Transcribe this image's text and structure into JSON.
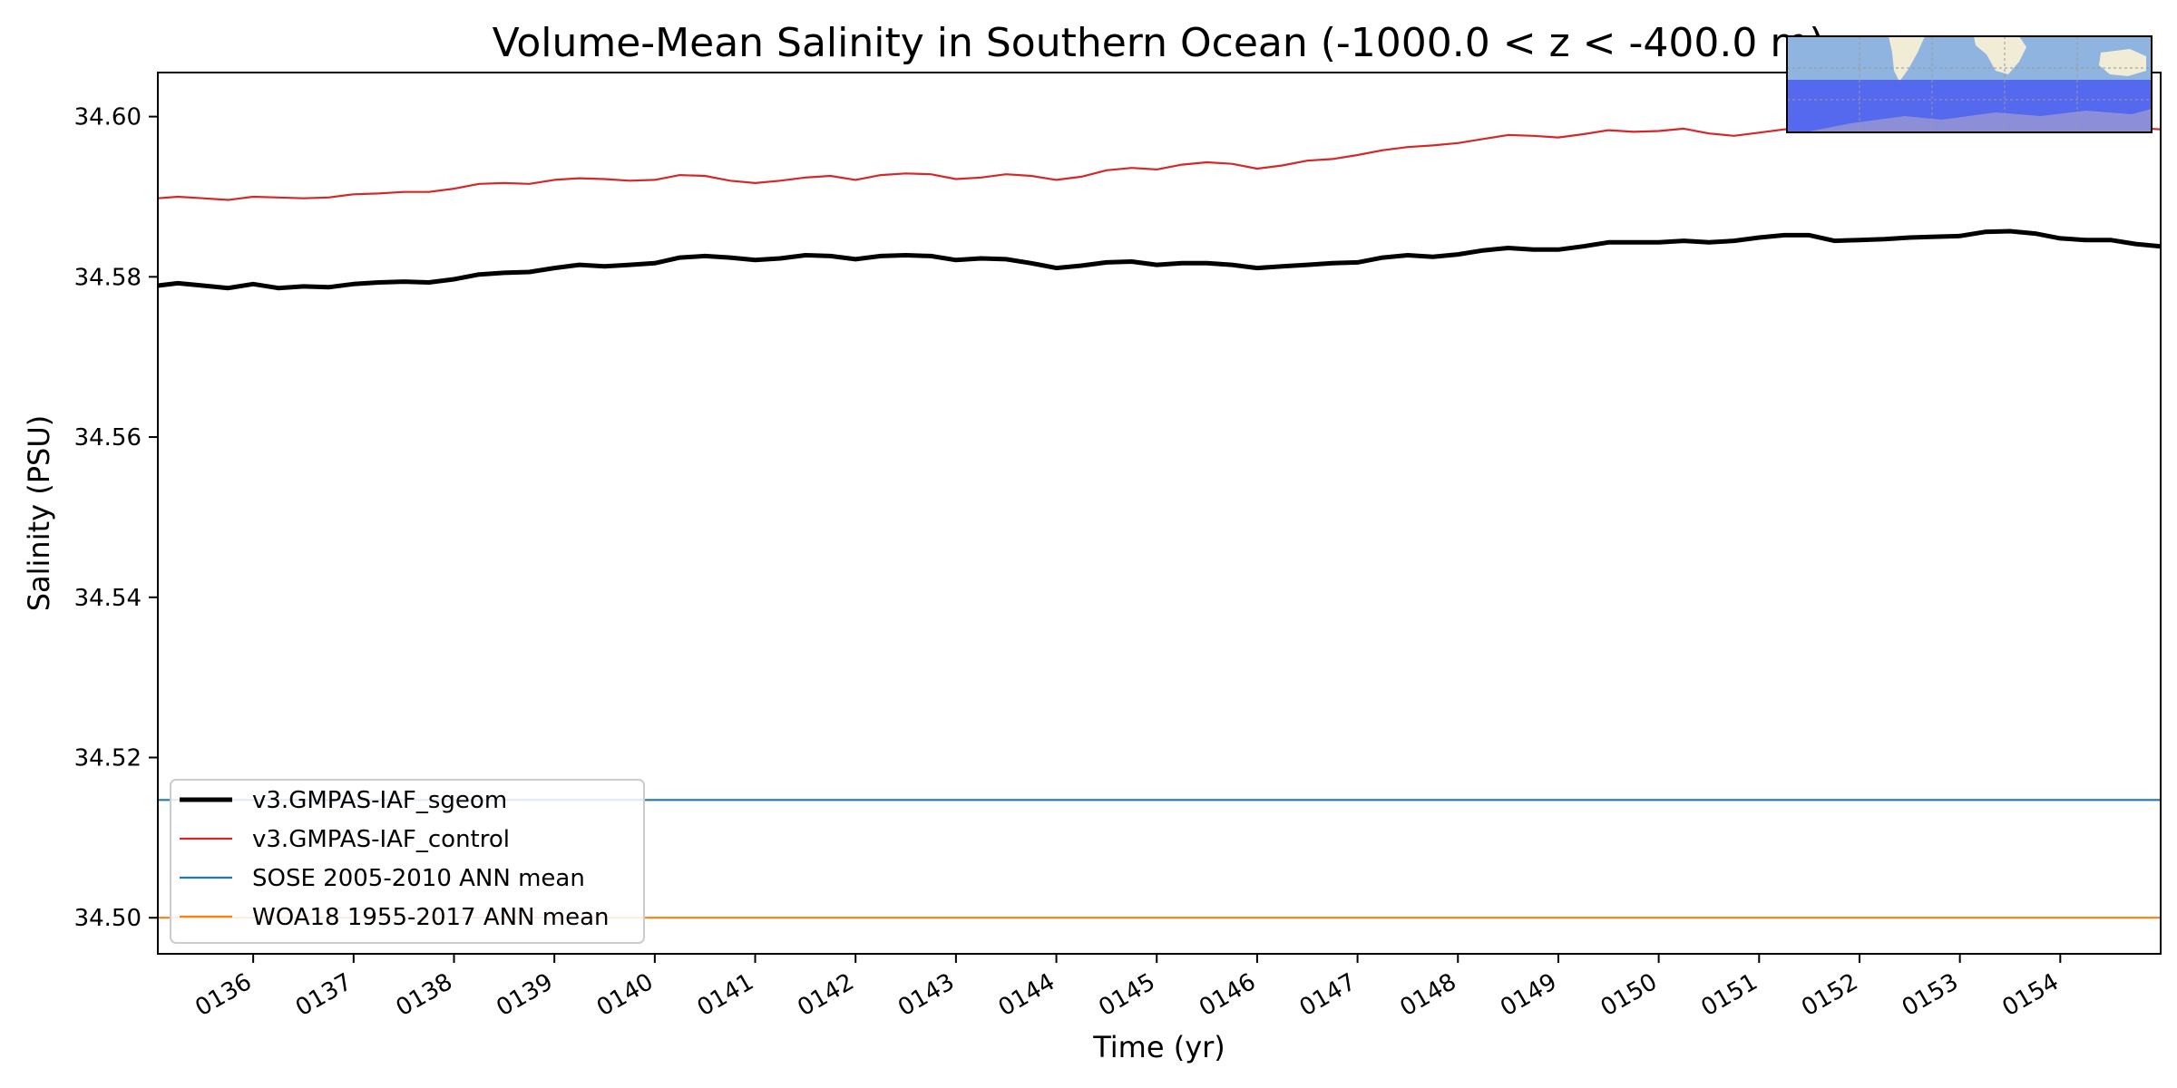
{
  "chart_data": {
    "type": "line",
    "title": "Volume-Mean Salinity in Southern Ocean (-1000.0 < z < -400.0 m)",
    "xlabel": "Time (yr)",
    "ylabel": "Salinity (PSU)",
    "xlim": [
      135.05,
      155.0
    ],
    "ylim": [
      34.4955,
      34.6055
    ],
    "grid": false,
    "legend_position": "lower-left",
    "x_ticks": [
      136,
      137,
      138,
      139,
      140,
      141,
      142,
      143,
      144,
      145,
      146,
      147,
      148,
      149,
      150,
      151,
      152,
      153,
      154
    ],
    "x_tick_labels": [
      "0136",
      "0137",
      "0138",
      "0139",
      "0140",
      "0141",
      "0142",
      "0143",
      "0144",
      "0145",
      "0146",
      "0147",
      "0148",
      "0149",
      "0150",
      "0151",
      "0152",
      "0153",
      "0154"
    ],
    "y_ticks": [
      34.5,
      34.52,
      34.54,
      34.56,
      34.58,
      34.6
    ],
    "y_tick_labels": [
      "34.50",
      "34.52",
      "34.54",
      "34.56",
      "34.58",
      "34.60"
    ],
    "series": [
      {
        "name": "v3.GMPAS-IAF_sgeom",
        "color": "#000000",
        "style": "thick",
        "x": [
          135.05,
          135.25,
          135.5,
          135.75,
          136.0,
          136.25,
          136.5,
          136.75,
          137.0,
          137.25,
          137.5,
          137.75,
          138.0,
          138.25,
          138.5,
          138.75,
          139.0,
          139.25,
          139.5,
          139.75,
          140.0,
          140.25,
          140.5,
          140.75,
          141.0,
          141.25,
          141.5,
          141.75,
          142.0,
          142.25,
          142.5,
          142.75,
          143.0,
          143.25,
          143.5,
          143.75,
          144.0,
          144.25,
          144.5,
          144.75,
          145.0,
          145.25,
          145.5,
          145.75,
          146.0,
          146.25,
          146.5,
          146.75,
          147.0,
          147.25,
          147.5,
          147.75,
          148.0,
          148.25,
          148.5,
          148.75,
          149.0,
          149.25,
          149.5,
          149.75,
          150.0,
          150.25,
          150.5,
          150.75,
          151.0,
          151.25,
          151.5,
          151.75,
          152.0,
          152.25,
          152.5,
          152.75,
          153.0,
          153.25,
          153.5,
          153.75,
          154.0,
          154.25,
          154.5,
          154.75,
          155.0
        ],
        "y": [
          34.5789,
          34.5792,
          34.5789,
          34.5786,
          34.5791,
          34.5786,
          34.5788,
          34.5787,
          34.5791,
          34.5793,
          34.5794,
          34.5793,
          34.5797,
          34.5803,
          34.5805,
          34.5806,
          34.5811,
          34.5815,
          34.5813,
          34.5815,
          34.5817,
          34.5824,
          34.5826,
          34.5824,
          34.5821,
          34.5823,
          34.5827,
          34.5826,
          34.5822,
          34.5826,
          34.5827,
          34.5826,
          34.5821,
          34.5823,
          34.5822,
          34.5817,
          34.5811,
          34.5814,
          34.5818,
          34.5819,
          34.5815,
          34.5817,
          34.5817,
          34.5815,
          34.5811,
          34.5813,
          34.5815,
          34.5817,
          34.5818,
          34.5824,
          34.5827,
          34.5825,
          34.5828,
          34.5833,
          34.5836,
          34.5834,
          34.5834,
          34.5838,
          34.5843,
          34.5843,
          34.5843,
          34.5845,
          34.5843,
          34.5845,
          34.5849,
          34.5852,
          34.5852,
          34.5845,
          34.5846,
          34.5847,
          34.5849,
          34.585,
          34.5851,
          34.5856,
          34.5857,
          34.5854,
          34.5848,
          34.5846,
          34.5846,
          34.5841,
          34.5838
        ]
      },
      {
        "name": "v3.GMPAS-IAF_control",
        "color": "#d62728",
        "style": "thin",
        "x": [
          135.05,
          135.25,
          135.5,
          135.75,
          136.0,
          136.25,
          136.5,
          136.75,
          137.0,
          137.25,
          137.5,
          137.75,
          138.0,
          138.25,
          138.5,
          138.75,
          139.0,
          139.25,
          139.5,
          139.75,
          140.0,
          140.25,
          140.5,
          140.75,
          141.0,
          141.25,
          141.5,
          141.75,
          142.0,
          142.25,
          142.5,
          142.75,
          143.0,
          143.25,
          143.5,
          143.75,
          144.0,
          144.25,
          144.5,
          144.75,
          145.0,
          145.25,
          145.5,
          145.75,
          146.0,
          146.25,
          146.5,
          146.75,
          147.0,
          147.25,
          147.5,
          147.75,
          148.0,
          148.25,
          148.5,
          148.75,
          149.0,
          149.25,
          149.5,
          149.75,
          150.0,
          150.25,
          150.5,
          150.75,
          151.0,
          151.25,
          151.5,
          151.75,
          152.0,
          152.25,
          152.5,
          152.75,
          153.0,
          153.25,
          153.5,
          153.75,
          154.0,
          154.25,
          154.5,
          154.75,
          155.0
        ],
        "y": [
          34.5898,
          34.59,
          34.5898,
          34.5896,
          34.59,
          34.5899,
          34.5898,
          34.5899,
          34.5903,
          34.5904,
          34.5906,
          34.5906,
          34.591,
          34.5916,
          34.5917,
          34.5916,
          34.5921,
          34.5923,
          34.5922,
          34.592,
          34.5921,
          34.5927,
          34.5926,
          34.592,
          34.5917,
          34.592,
          34.5924,
          34.5926,
          34.5921,
          34.5927,
          34.5929,
          34.5928,
          34.5922,
          34.5924,
          34.5928,
          34.5926,
          34.5921,
          34.5925,
          34.5933,
          34.5936,
          34.5934,
          34.594,
          34.5943,
          34.5941,
          34.5935,
          34.5939,
          34.5945,
          34.5947,
          34.5952,
          34.5958,
          34.5962,
          34.5964,
          34.5967,
          34.5972,
          34.5977,
          34.5976,
          34.5974,
          34.5978,
          34.5983,
          34.5981,
          34.5982,
          34.5985,
          34.5979,
          34.5976,
          34.598,
          34.5984,
          34.5986,
          34.5984,
          34.5988,
          34.5992,
          34.5993,
          34.5991,
          34.599,
          34.5994,
          34.5996,
          34.5993,
          34.5988,
          34.5987,
          34.5988,
          34.5986,
          34.5984
        ]
      },
      {
        "name": "SOSE 2005-2010 ANN mean",
        "color": "#1f77b4",
        "style": "thin",
        "x": [
          135.05,
          155.0
        ],
        "y": [
          34.5147,
          34.5147
        ]
      },
      {
        "name": "WOA18 1955-2017 ANN mean",
        "color": "#ff7f0e",
        "style": "thin",
        "x": [
          135.05,
          155.0
        ],
        "y": [
          34.5,
          34.5
        ]
      }
    ]
  },
  "inset_map": {
    "colors": {
      "ocean": "#8fb4e0",
      "land": "#f0ecd6",
      "region": "#4a5cf0",
      "region_land": "#8c8fd8"
    }
  }
}
